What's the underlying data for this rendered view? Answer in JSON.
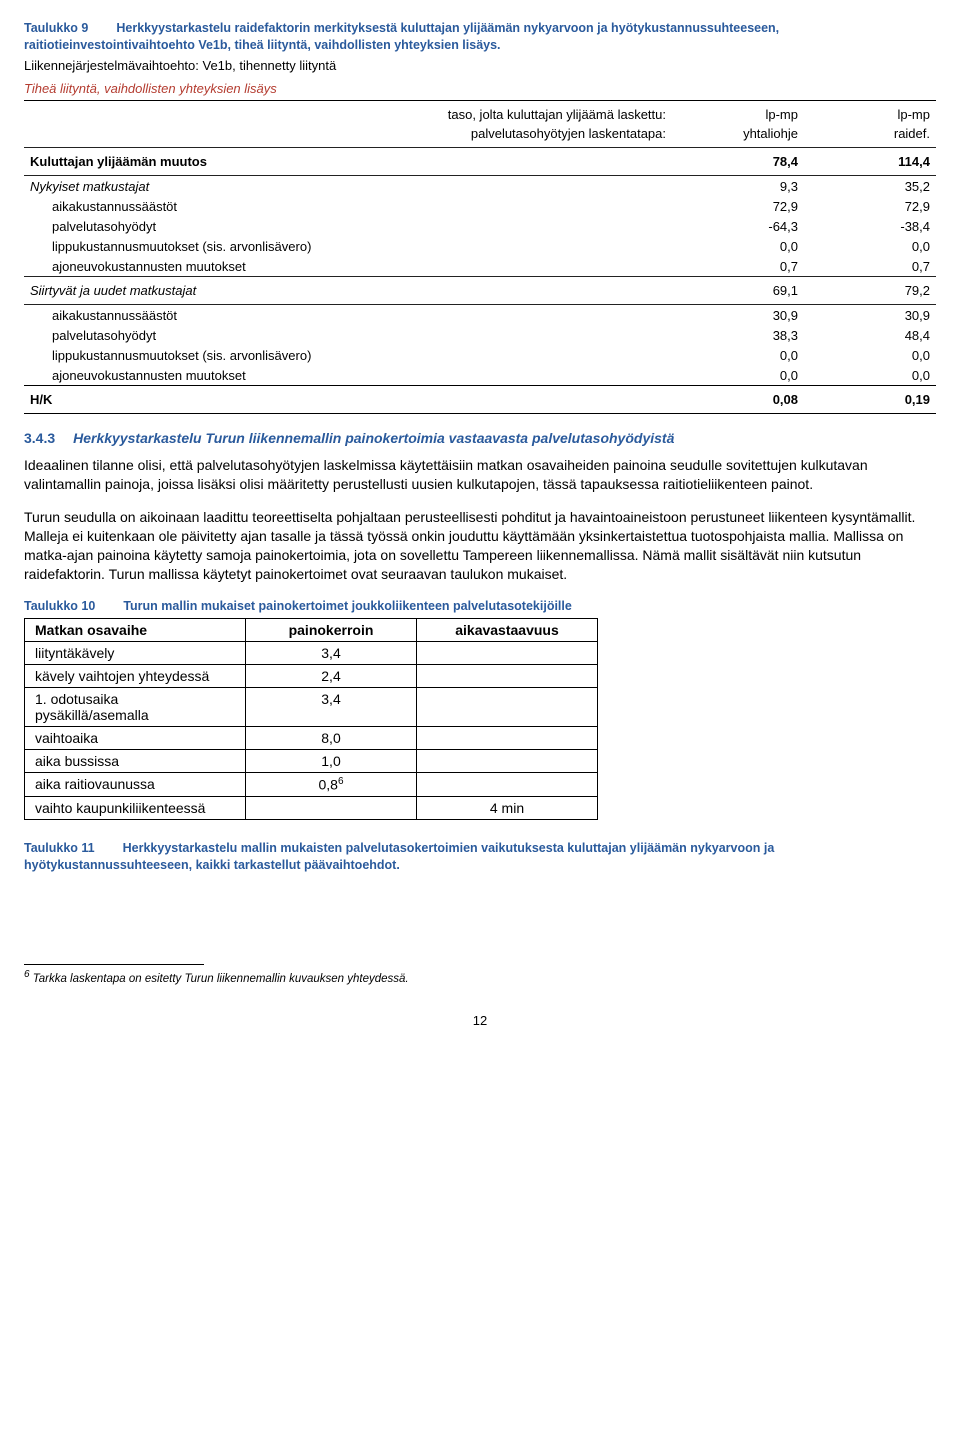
{
  "t9": {
    "caption_num": "Taulukko 9",
    "caption_txt": "Herkkyystarkastelu raidefaktorin merkityksestä kuluttajan ylijäämän nykyarvoon ja hyötykustannussuhteeseen, raitiotieinvestointivaihtoehto Ve1b, tiheä liityntä, vaihdollisten yhteyksien lisäys.",
    "intro": "Liikennejärjestelmävaihtoehto: Ve1b, tihennetty liityntä",
    "subtitle": "Tiheä liityntä, vaihdollisten yhteyksien lisäys",
    "h_taso": "taso, jolta kuluttajan ylijäämä laskettu:",
    "h_palv": "palvelutasohyötyjen laskentatapa:",
    "c1a": "lp-mp",
    "c2a": "lp-mp",
    "c1b": "yhtaliohje",
    "c2b": "raidef.",
    "r_kul": {
      "l": "Kuluttajan ylijäämän muutos",
      "v1": "78,4",
      "v2": "114,4"
    },
    "r_nyk": {
      "l": "Nykyiset matkustajat",
      "v1": "9,3",
      "v2": "35,2"
    },
    "r_aik1": {
      "l": "aikakustannussäästöt",
      "v1": "72,9",
      "v2": "72,9"
    },
    "r_pal1": {
      "l": "palvelutasohyödyt",
      "v1": "-64,3",
      "v2": "-38,4"
    },
    "r_lip1": {
      "l": "lippukustannusmuutokset (sis. arvonlisävero)",
      "v1": "0,0",
      "v2": "0,0"
    },
    "r_ajo1": {
      "l": "ajoneuvokustannusten muutokset",
      "v1": "0,7",
      "v2": "0,7"
    },
    "r_sii": {
      "l": "Siirtyvät ja uudet matkustajat",
      "v1": "69,1",
      "v2": "79,2"
    },
    "r_aik2": {
      "l": "aikakustannussäästöt",
      "v1": "30,9",
      "v2": "30,9"
    },
    "r_pal2": {
      "l": "palvelutasohyödyt",
      "v1": "38,3",
      "v2": "48,4"
    },
    "r_lip2": {
      "l": "lippukustannusmuutokset (sis. arvonlisävero)",
      "v1": "0,0",
      "v2": "0,0"
    },
    "r_ajo2": {
      "l": "ajoneuvokustannusten muutokset",
      "v1": "0,0",
      "v2": "0,0"
    },
    "r_hk": {
      "l": "H/K",
      "v1": "0,08",
      "v2": "0,19"
    }
  },
  "h343": {
    "num": "3.4.3",
    "txt": "Herkkyystarkastelu Turun liikennemallin painokertoimia vastaavasta palvelutasohyödyistä"
  },
  "para1": "Ideaalinen tilanne olisi, että palvelutasohyötyjen laskelmissa käytettäisiin matkan osavaiheiden painoina seudulle sovitettujen kulkutavan valintamallin painoja, joissa lisäksi olisi määritetty perustellusti uusien kulkutapojen, tässä tapauksessa raitiotieliikenteen painot.",
  "para2": "Turun seudulla on aikoinaan laadittu teoreettiselta pohjaltaan perusteellisesti pohditut ja havaintoaineistoon perustuneet liikenteen kysyntämallit. Malleja ei kuitenkaan ole päivitetty ajan tasalle ja tässä työssä onkin jouduttu käyttämään yksinkertaistettua tuotospohjaista mallia. Mallissa on matka-ajan painoina käytetty samoja painokertoimia, jota on sovellettu Tampereen liikennemallissa. Nämä mallit sisältävät niin kutsutun raidefaktorin. Turun mallissa käytetyt painokertoimet ovat seuraavan taulukon mukaiset.",
  "t10": {
    "caption_num": "Taulukko 10",
    "caption_txt": "Turun mallin mukaiset painokertoimet joukkoliikenteen palvelutasotekijöille",
    "h1": "Matkan osavaihe",
    "h2": "painokerroin",
    "h3": "aikavastaavuus",
    "rows": [
      {
        "c1": "liityntäkävely",
        "c2": "3,4",
        "c3": ""
      },
      {
        "c1": "kävely vaihtojen yhteydessä",
        "c2": "2,4",
        "c3": ""
      },
      {
        "c1": "1. odotusaika pysäkillä/asemalla",
        "c2": "3,4",
        "c3": ""
      },
      {
        "c1": "vaihtoaika",
        "c2": "8,0",
        "c3": ""
      },
      {
        "c1": "aika bussissa",
        "c2": "1,0",
        "c3": ""
      },
      {
        "c1": "aika raitiovaunussa",
        "c2": "0,8",
        "c3": "",
        "sup": "6"
      },
      {
        "c1": "vaihto kaupunkiliikenteessä",
        "c2": "",
        "c3": "4 min"
      }
    ]
  },
  "t11": {
    "caption_num": "Taulukko 11",
    "caption_txt": "Herkkyystarkastelu mallin mukaisten palvelutasokertoimien vaikutuksesta kuluttajan ylijäämän nykyarvoon ja hyötykustannussuhteeseen, kaikki tarkastellut päävaihtoehdot."
  },
  "footnote": {
    "num": "6",
    "txt": " Tarkka laskentapa on esitetty Turun liikennemallin kuvauksen yhteydessä."
  },
  "pagenum": "12"
}
